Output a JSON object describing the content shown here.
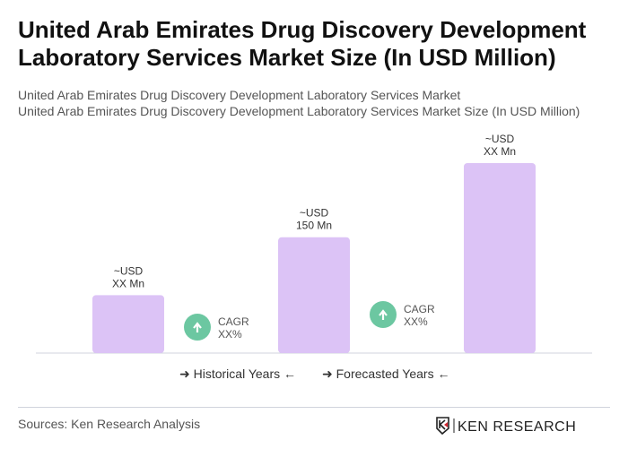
{
  "title": "United Arab Emirates Drug Discovery Development Laboratory Services Market Size (In USD Million)",
  "subtitle_1": "United Arab Emirates Drug Discovery Development Laboratory Services Market",
  "subtitle_2": "United Arab Emirates Drug Discovery Development Laboratory Services Market Size (In USD Million)",
  "chart_data": {
    "type": "bar",
    "categories": [
      "",
      "",
      ""
    ],
    "values": [
      75,
      150,
      246
    ],
    "data_labels": [
      [
        "~USD",
        "XX Mn"
      ],
      [
        "~USD",
        "150 Mn"
      ],
      [
        "~USD",
        "XX Mn"
      ]
    ],
    "cagr_labels": [
      [
        "CAGR",
        "XX%"
      ],
      [
        "CAGR",
        "XX%"
      ]
    ],
    "bar_color": "#dcc3f6",
    "cagr_color": "#6cc7a1",
    "grid": false
  },
  "legend": {
    "historical": "Historical Years",
    "forecasted": "Forecasted Years"
  },
  "source": "Sources: Ken Research Analysis",
  "logo_text": "KEN RESEARCH"
}
